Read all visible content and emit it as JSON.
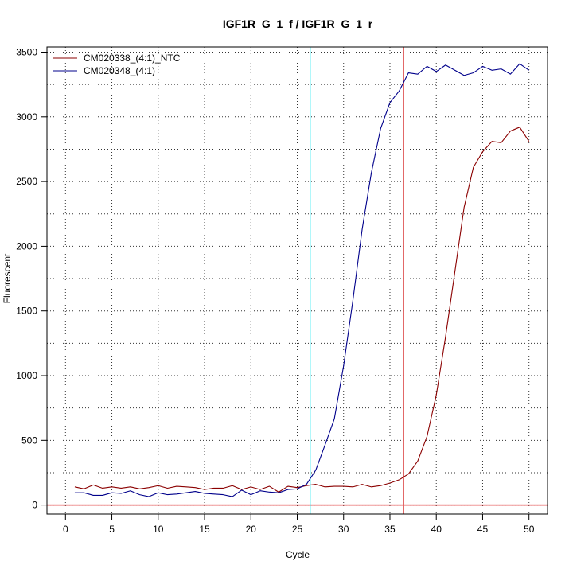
{
  "chart_data": {
    "type": "line",
    "title": "IGF1R_G_1_f / IGF1R_G_1_r",
    "xlabel": "Cycle",
    "ylabel": "Fluorescent",
    "xlim": [
      -2,
      52
    ],
    "ylim": [
      -70,
      3540
    ],
    "x_ticks": [
      0,
      5,
      10,
      15,
      20,
      25,
      30,
      35,
      40,
      45,
      50
    ],
    "y_ticks": [
      0,
      500,
      1000,
      1500,
      2000,
      2500,
      3000,
      3500
    ],
    "grid": true,
    "legend_position": "top-left",
    "x": [
      1,
      2,
      3,
      4,
      5,
      6,
      7,
      8,
      9,
      10,
      11,
      12,
      13,
      14,
      15,
      16,
      17,
      18,
      19,
      20,
      21,
      22,
      23,
      24,
      25,
      26,
      27,
      28,
      29,
      30,
      31,
      32,
      33,
      34,
      35,
      36,
      37,
      38,
      39,
      40,
      41,
      42,
      43,
      44,
      45,
      46,
      47,
      48,
      49,
      50
    ],
    "series": [
      {
        "name": "CM020338_(4:1)_NTC",
        "color": "#8b0000",
        "values": [
          140,
          125,
          155,
          130,
          140,
          130,
          140,
          125,
          135,
          150,
          130,
          145,
          140,
          135,
          120,
          130,
          130,
          150,
          120,
          140,
          120,
          145,
          100,
          145,
          135,
          150,
          160,
          140,
          145,
          145,
          140,
          160,
          140,
          150,
          170,
          195,
          240,
          340,
          530,
          850,
          1300,
          1800,
          2300,
          2610,
          2730,
          2810,
          2800,
          2890,
          2920,
          2810
        ]
      },
      {
        "name": "CM020348_(4:1)",
        "color": "#00008b",
        "values": [
          95,
          95,
          75,
          75,
          95,
          90,
          110,
          80,
          65,
          95,
          80,
          85,
          95,
          105,
          90,
          85,
          80,
          65,
          115,
          80,
          110,
          100,
          95,
          120,
          125,
          160,
          270,
          465,
          665,
          1075,
          1580,
          2130,
          2570,
          2910,
          3110,
          3200,
          3340,
          3330,
          3390,
          3350,
          3400,
          3360,
          3320,
          3340,
          3390,
          3360,
          3370,
          3330,
          3410,
          3360
        ]
      }
    ],
    "reference_lines": {
      "vertical": [
        {
          "x": 26.4,
          "color": "#00e5ee"
        },
        {
          "x": 36.5,
          "color": "#e06060"
        }
      ],
      "horizontal": [
        {
          "y": 0,
          "color": "#e03030"
        }
      ]
    }
  }
}
